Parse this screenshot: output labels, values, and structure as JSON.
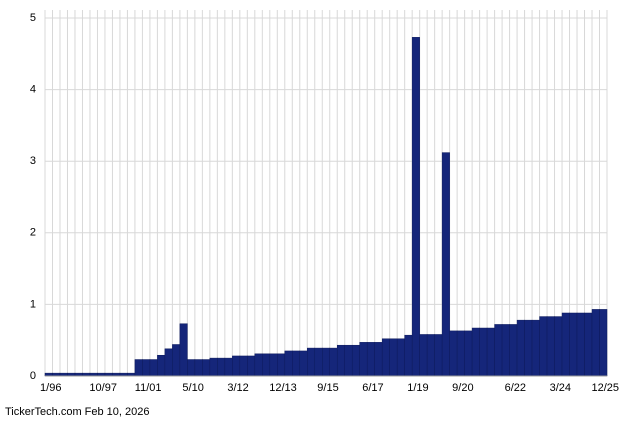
{
  "chart_data": {
    "type": "bar",
    "categories": [
      "1/96",
      null,
      null,
      null,
      null,
      null,
      null,
      "10/97",
      null,
      null,
      null,
      null,
      null,
      "11/01",
      null,
      null,
      null,
      null,
      null,
      "5/10",
      null,
      null,
      null,
      null,
      null,
      "3/12",
      null,
      null,
      null,
      null,
      null,
      "12/13",
      null,
      null,
      null,
      null,
      null,
      "9/15",
      null,
      null,
      null,
      null,
      null,
      "6/17",
      null,
      null,
      null,
      null,
      null,
      "1/19",
      null,
      null,
      null,
      null,
      null,
      "9/20",
      null,
      null,
      null,
      null,
      null,
      null,
      "6/22",
      null,
      null,
      null,
      null,
      null,
      "3/24",
      null,
      null,
      null,
      null,
      null,
      "12/25"
    ],
    "values": [
      0.04,
      0.04,
      0.04,
      0.04,
      0.04,
      0.04,
      0.04,
      0.04,
      0.04,
      0.04,
      0.04,
      0.04,
      0.23,
      0.23,
      0.23,
      0.29,
      0.38,
      0.44,
      0.73,
      0.23,
      0.23,
      0.23,
      0.25,
      0.25,
      0.25,
      0.28,
      0.28,
      0.28,
      0.31,
      0.31,
      0.31,
      0.31,
      0.35,
      0.35,
      0.35,
      0.39,
      0.39,
      0.39,
      0.39,
      0.43,
      0.43,
      0.43,
      0.47,
      0.47,
      0.47,
      0.52,
      0.52,
      0.52,
      0.57,
      4.73,
      0.58,
      0.58,
      0.58,
      3.12,
      0.63,
      0.63,
      0.63,
      0.67,
      0.67,
      0.67,
      0.72,
      0.72,
      0.72,
      0.78,
      0.78,
      0.78,
      0.83,
      0.83,
      0.83,
      0.88,
      0.88,
      0.88,
      0.88,
      0.93,
      0.93
    ],
    "color": "#15267a",
    "ylim": [
      0,
      5
    ],
    "yticks": [
      0,
      1,
      2,
      3,
      4,
      5
    ],
    "grid": true,
    "footer": "TickerTech.com  Feb 10, 2026"
  }
}
